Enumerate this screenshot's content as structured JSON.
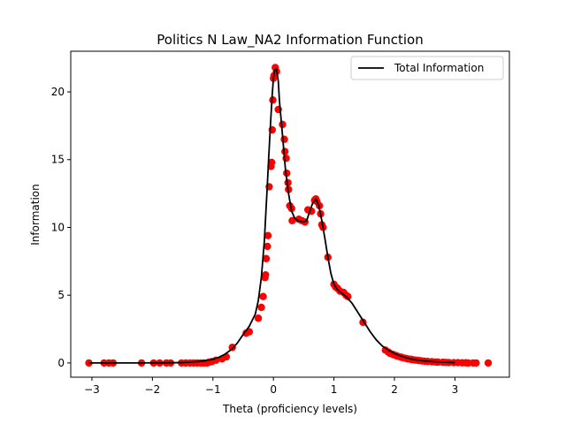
{
  "chart_data": {
    "type": "line",
    "title": "Politics N Law_NA2 Information Function",
    "xlabel": "Theta (proficiency levels)",
    "ylabel": "Information",
    "xlim": [
      -3.35,
      3.9
    ],
    "ylim": [
      -1.05,
      23.0
    ],
    "xticks": [
      -3,
      -2,
      -1,
      0,
      1,
      2,
      3
    ],
    "yticks": [
      0,
      5,
      10,
      15,
      20
    ],
    "grid": false,
    "legend": {
      "position": "top-right",
      "entries": [
        "Total Information"
      ]
    },
    "series": [
      {
        "name": "Total Information",
        "style": "line",
        "color": "#000000",
        "x": [
          -3.05,
          -2.8,
          -2.5,
          -2.2,
          -2.0,
          -1.8,
          -1.6,
          -1.5,
          -1.4,
          -1.3,
          -1.2,
          -1.1,
          -1.0,
          -0.9,
          -0.8,
          -0.7,
          -0.6,
          -0.5,
          -0.4,
          -0.3,
          -0.25,
          -0.2,
          -0.15,
          -0.1,
          -0.08,
          -0.05,
          -0.02,
          0.0,
          0.02,
          0.05,
          0.08,
          0.1,
          0.15,
          0.2,
          0.25,
          0.3,
          0.35,
          0.4,
          0.5,
          0.55,
          0.6,
          0.65,
          0.7,
          0.75,
          0.8,
          0.85,
          0.9,
          0.95,
          1.0,
          1.05,
          1.1,
          1.2,
          1.3,
          1.4,
          1.5,
          1.6,
          1.7,
          1.8,
          1.9,
          2.0,
          2.1,
          2.2,
          2.3,
          2.4,
          2.5,
          2.6,
          2.7,
          2.8,
          2.9,
          3.0
        ],
        "y": [
          0.0,
          0.0,
          0.0,
          0.0,
          0.01,
          0.01,
          0.02,
          0.03,
          0.05,
          0.08,
          0.12,
          0.18,
          0.27,
          0.42,
          0.65,
          0.98,
          1.45,
          2.1,
          2.7,
          3.6,
          4.6,
          6.3,
          9.0,
          13.2,
          15.0,
          17.5,
          19.8,
          21.0,
          21.6,
          21.7,
          20.8,
          19.3,
          16.8,
          14.2,
          12.5,
          11.2,
          10.7,
          10.5,
          10.4,
          10.5,
          11.2,
          11.8,
          12.1,
          11.6,
          10.5,
          9.2,
          7.8,
          6.6,
          5.8,
          5.45,
          5.25,
          4.9,
          4.4,
          3.7,
          3.0,
          2.3,
          1.7,
          1.25,
          0.95,
          0.7,
          0.52,
          0.38,
          0.27,
          0.2,
          0.15,
          0.11,
          0.08,
          0.06,
          0.04,
          0.03
        ]
      },
      {
        "name": "",
        "style": "scatter",
        "color": "#ff0000",
        "x": [
          -3.05,
          -2.8,
          -2.72,
          -2.65,
          -2.18,
          -1.98,
          -1.88,
          -1.77,
          -1.7,
          -1.52,
          -1.45,
          -1.38,
          -1.32,
          -1.26,
          -1.2,
          -1.15,
          -1.1,
          -1.07,
          -1.02,
          -0.95,
          -0.85,
          -0.78,
          -0.68,
          -0.45,
          -0.4,
          -0.25,
          -0.2,
          -0.17,
          -0.14,
          -0.13,
          -0.12,
          -0.1,
          -0.09,
          -0.07,
          -0.04,
          -0.03,
          -0.02,
          -0.01,
          0.0,
          0.01,
          0.03,
          0.05,
          0.08,
          0.15,
          0.18,
          0.19,
          0.21,
          0.22,
          0.24,
          0.25,
          0.27,
          0.3,
          0.31,
          0.42,
          0.47,
          0.52,
          0.57,
          0.63,
          0.68,
          0.7,
          0.72,
          0.76,
          0.78,
          0.8,
          0.82,
          0.9,
          1.0,
          1.03,
          1.06,
          1.1,
          1.16,
          1.2,
          1.23,
          1.48,
          1.85,
          1.9,
          1.93,
          1.98,
          2.02,
          2.05,
          2.1,
          2.13,
          2.18,
          2.22,
          2.27,
          2.3,
          2.35,
          2.4,
          2.45,
          2.5,
          2.55,
          2.62,
          2.68,
          2.72,
          2.8,
          2.85,
          2.9,
          2.98,
          3.05,
          3.12,
          3.18,
          3.22,
          3.3,
          3.35,
          3.55
        ],
        "y": [
          0.0,
          0.0,
          0.0,
          0.0,
          0.0,
          0.0,
          0.0,
          0.0,
          0.0,
          0.0,
          0.0,
          0.0,
          0.0,
          0.0,
          0.0,
          0.0,
          0.0,
          0.05,
          0.1,
          0.2,
          0.3,
          0.45,
          1.15,
          2.2,
          2.3,
          3.3,
          4.1,
          4.9,
          6.3,
          6.5,
          7.7,
          8.6,
          9.4,
          13.0,
          14.5,
          14.8,
          17.2,
          19.4,
          21.0,
          21.2,
          21.8,
          21.5,
          18.7,
          17.6,
          16.5,
          15.6,
          15.1,
          14.0,
          13.3,
          12.8,
          11.6,
          11.4,
          10.5,
          10.6,
          10.5,
          10.4,
          11.3,
          11.2,
          12.0,
          12.1,
          11.9,
          11.6,
          11.0,
          10.2,
          10.0,
          7.8,
          5.8,
          5.6,
          5.5,
          5.3,
          5.2,
          5.0,
          4.9,
          3.0,
          0.95,
          0.8,
          0.7,
          0.62,
          0.55,
          0.5,
          0.44,
          0.4,
          0.35,
          0.3,
          0.27,
          0.24,
          0.21,
          0.18,
          0.15,
          0.13,
          0.11,
          0.09,
          0.07,
          0.06,
          0.05,
          0.04,
          0.03,
          0.02,
          0.02,
          0.01,
          0.01,
          0.0,
          0.0,
          0.0,
          0.0
        ]
      }
    ]
  }
}
